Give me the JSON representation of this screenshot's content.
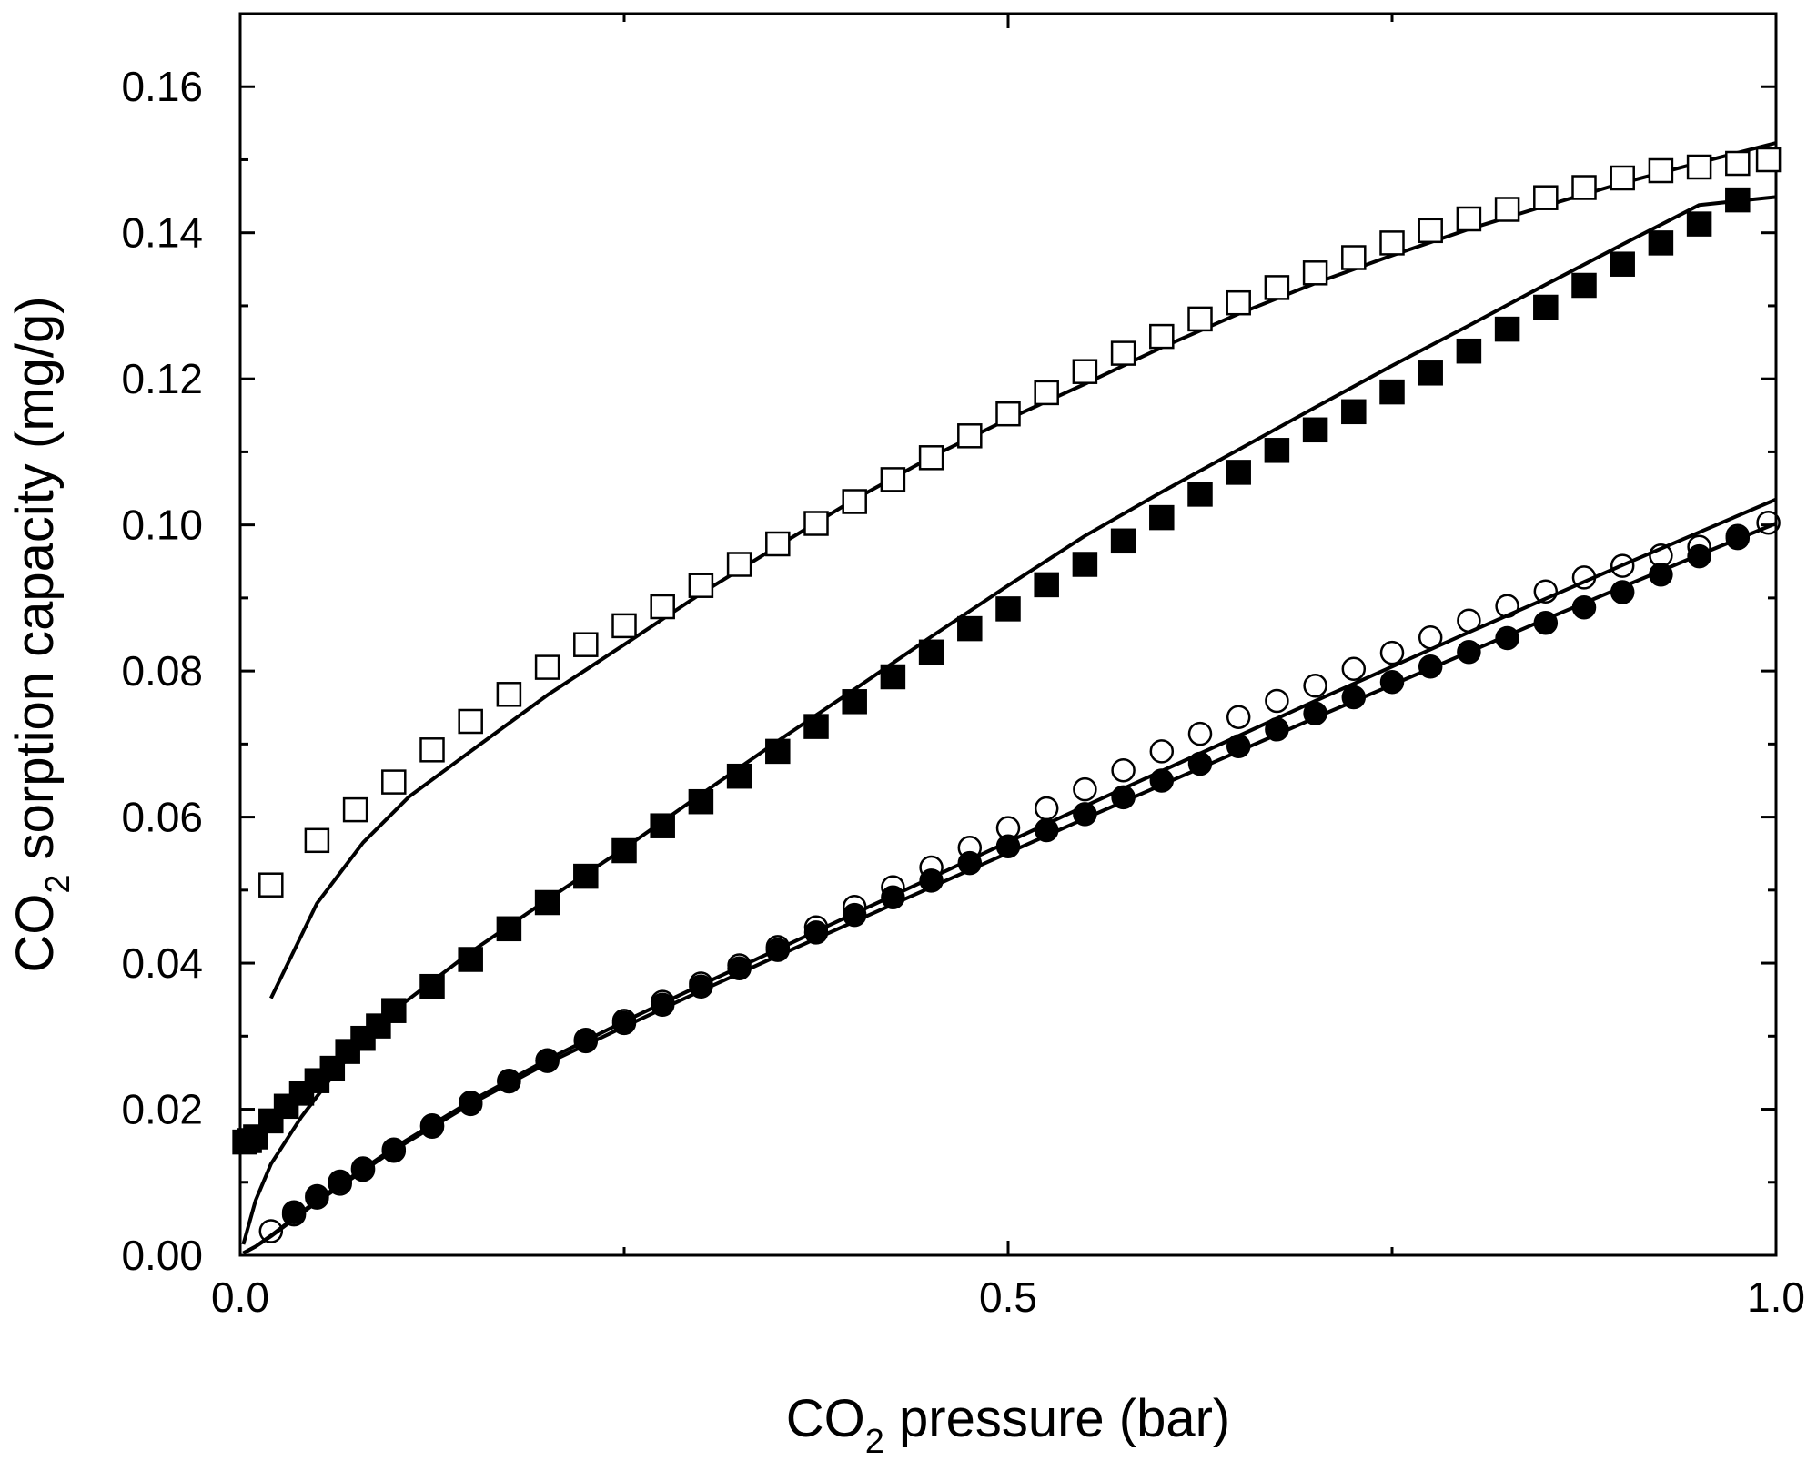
{
  "chart_data": {
    "type": "scatter",
    "xlabel": {
      "main": "CO",
      "sub": "2",
      "rest": " pressure (bar)"
    },
    "ylabel": {
      "main": "CO",
      "sub": "2",
      "rest": " sorption capacity (mg/g)"
    },
    "xlim": [
      0,
      1.0
    ],
    "ylim": [
      0,
      0.17
    ],
    "x_major_ticks": [
      0.0,
      0.5,
      1.0
    ],
    "x_tick_labels": [
      "0.0",
      "0.5",
      "1.0"
    ],
    "x_minor_ticks": [
      0.25,
      0.75
    ],
    "y_ticks": [
      0.0,
      0.02,
      0.04,
      0.06,
      0.08,
      0.1,
      0.12,
      0.14,
      0.16
    ],
    "y_tick_labels": [
      "0.00",
      "0.02",
      "0.04",
      "0.06",
      "0.08",
      "0.10",
      "0.12",
      "0.14",
      "0.16"
    ],
    "y_minor_ticks": [
      0.01,
      0.03,
      0.05,
      0.07,
      0.09,
      0.11,
      0.13,
      0.15
    ],
    "grid": false,
    "legend": "none",
    "series": [
      {
        "name": "open-squares",
        "marker": "square-open",
        "x": [
          0.02,
          0.05,
          0.075,
          0.1,
          0.125,
          0.15,
          0.175,
          0.2,
          0.225,
          0.25,
          0.275,
          0.3,
          0.325,
          0.35,
          0.375,
          0.4,
          0.425,
          0.45,
          0.475,
          0.5,
          0.525,
          0.55,
          0.575,
          0.6,
          0.625,
          0.65,
          0.675,
          0.7,
          0.725,
          0.75,
          0.775,
          0.8,
          0.825,
          0.85,
          0.875,
          0.9,
          0.925,
          0.95,
          0.975,
          0.995
        ],
        "y": [
          0.0507,
          0.0568,
          0.061,
          0.0648,
          0.0692,
          0.0731,
          0.0768,
          0.0805,
          0.0836,
          0.0862,
          0.0888,
          0.0917,
          0.0946,
          0.0974,
          0.1002,
          0.1032,
          0.1062,
          0.1092,
          0.1122,
          0.1152,
          0.1181,
          0.121,
          0.1235,
          0.1258,
          0.1282,
          0.1304,
          0.1325,
          0.1345,
          0.1366,
          0.1386,
          0.1403,
          0.1419,
          0.1432,
          0.1448,
          0.1462,
          0.1475,
          0.1485,
          0.149,
          0.1495,
          0.15
        ]
      },
      {
        "name": "filled-squares",
        "marker": "square-filled",
        "x": [
          0.003,
          0.006,
          0.01,
          0.02,
          0.03,
          0.04,
          0.05,
          0.06,
          0.07,
          0.08,
          0.09,
          0.1,
          0.125,
          0.15,
          0.175,
          0.2,
          0.225,
          0.25,
          0.275,
          0.3,
          0.325,
          0.35,
          0.375,
          0.4,
          0.425,
          0.45,
          0.475,
          0.5,
          0.525,
          0.55,
          0.575,
          0.6,
          0.625,
          0.65,
          0.675,
          0.7,
          0.725,
          0.75,
          0.775,
          0.8,
          0.825,
          0.85,
          0.875,
          0.9,
          0.925,
          0.95,
          0.975
        ],
        "y": [
          0.0155,
          0.0157,
          0.0162,
          0.0184,
          0.0204,
          0.0222,
          0.0239,
          0.0256,
          0.0279,
          0.0297,
          0.0314,
          0.0335,
          0.0368,
          0.0405,
          0.0447,
          0.0483,
          0.0519,
          0.0554,
          0.0588,
          0.0621,
          0.0656,
          0.069,
          0.0724,
          0.0758,
          0.0792,
          0.0826,
          0.0858,
          0.0885,
          0.0918,
          0.0946,
          0.0978,
          0.101,
          0.1042,
          0.1072,
          0.1102,
          0.113,
          0.1155,
          0.1182,
          0.1208,
          0.1238,
          0.1268,
          0.1298,
          0.1328,
          0.1357,
          0.1386,
          0.1412,
          0.1445
        ]
      },
      {
        "name": "open-circles",
        "marker": "circle-open",
        "x": [
          0.02,
          0.035,
          0.05,
          0.065,
          0.08,
          0.1,
          0.125,
          0.15,
          0.175,
          0.2,
          0.225,
          0.25,
          0.275,
          0.3,
          0.325,
          0.35,
          0.375,
          0.4,
          0.425,
          0.45,
          0.475,
          0.5,
          0.525,
          0.55,
          0.575,
          0.6,
          0.625,
          0.65,
          0.675,
          0.7,
          0.725,
          0.75,
          0.775,
          0.8,
          0.825,
          0.85,
          0.875,
          0.9,
          0.925,
          0.95,
          0.975,
          0.995
        ],
        "y": [
          0.0033,
          0.0056,
          0.0079,
          0.0098,
          0.0117,
          0.0143,
          0.0176,
          0.0207,
          0.0238,
          0.0267,
          0.0295,
          0.0321,
          0.0347,
          0.0372,
          0.0397,
          0.0422,
          0.0449,
          0.0477,
          0.0504,
          0.0531,
          0.0558,
          0.0585,
          0.0612,
          0.0638,
          0.0664,
          0.069,
          0.0714,
          0.0737,
          0.0759,
          0.078,
          0.0803,
          0.0825,
          0.0846,
          0.0869,
          0.0889,
          0.0909,
          0.0928,
          0.0944,
          0.0958,
          0.097,
          0.0985,
          0.1003
        ]
      },
      {
        "name": "filled-circles",
        "marker": "circle-filled",
        "x": [
          0.035,
          0.05,
          0.065,
          0.08,
          0.1,
          0.125,
          0.15,
          0.175,
          0.2,
          0.225,
          0.25,
          0.275,
          0.3,
          0.325,
          0.35,
          0.375,
          0.4,
          0.425,
          0.45,
          0.475,
          0.5,
          0.525,
          0.55,
          0.575,
          0.6,
          0.625,
          0.65,
          0.675,
          0.7,
          0.725,
          0.75,
          0.775,
          0.8,
          0.825,
          0.85,
          0.875,
          0.9,
          0.925,
          0.95,
          0.975
        ],
        "y": [
          0.0059,
          0.0081,
          0.0101,
          0.0119,
          0.0145,
          0.0178,
          0.0209,
          0.0239,
          0.0266,
          0.0293,
          0.0318,
          0.0343,
          0.0368,
          0.0393,
          0.0418,
          0.0442,
          0.0466,
          0.049,
          0.0513,
          0.0537,
          0.056,
          0.0582,
          0.0604,
          0.0627,
          0.065,
          0.0673,
          0.0697,
          0.072,
          0.0742,
          0.0764,
          0.0785,
          0.0806,
          0.0826,
          0.0845,
          0.0866,
          0.0887,
          0.0908,
          0.0932,
          0.0957,
          0.0982
        ]
      }
    ],
    "fit_lines": [
      {
        "name": "fit-open-squares",
        "x": [
          0.02,
          0.05,
          0.08,
          0.11,
          0.15,
          0.2,
          0.25,
          0.3,
          0.35,
          0.4,
          0.45,
          0.5,
          0.55,
          0.6,
          0.65,
          0.7,
          0.75,
          0.8,
          0.85,
          0.9,
          0.95,
          1.0
        ],
        "y": [
          0.0352,
          0.0482,
          0.0565,
          0.0628,
          0.069,
          0.0767,
          0.0836,
          0.0906,
          0.0971,
          0.1035,
          0.1093,
          0.1145,
          0.1193,
          0.1243,
          0.1289,
          0.1331,
          0.1369,
          0.1405,
          0.1437,
          0.1468,
          0.1496,
          0.1523
        ]
      },
      {
        "name": "fit-filled-squares",
        "x": [
          0.002,
          0.01,
          0.02,
          0.04,
          0.06,
          0.08,
          0.1,
          0.15,
          0.2,
          0.25,
          0.3,
          0.35,
          0.4,
          0.45,
          0.5,
          0.55,
          0.6,
          0.65,
          0.7,
          0.75,
          0.8,
          0.85,
          0.9,
          0.95,
          1.0
        ],
        "y": [
          0.0015,
          0.0075,
          0.0125,
          0.019,
          0.0245,
          0.0295,
          0.0335,
          0.0415,
          0.0487,
          0.0557,
          0.0631,
          0.0704,
          0.0775,
          0.0847,
          0.0917,
          0.0985,
          0.1045,
          0.1103,
          0.1161,
          0.1218,
          0.1273,
          0.1329,
          0.1384,
          0.1438,
          0.1449
        ]
      },
      {
        "name": "fit-open-circles",
        "x": [
          0.002,
          0.01,
          0.02,
          0.05,
          0.1,
          0.15,
          0.2,
          0.25,
          0.3,
          0.35,
          0.4,
          0.45,
          0.5,
          0.55,
          0.6,
          0.65,
          0.7,
          0.75,
          0.8,
          0.85,
          0.9,
          0.95,
          1.0
        ],
        "y": [
          0.0003,
          0.0012,
          0.0027,
          0.0075,
          0.0147,
          0.0211,
          0.0268,
          0.032,
          0.037,
          0.0419,
          0.0468,
          0.0517,
          0.0566,
          0.0615,
          0.0663,
          0.0711,
          0.0759,
          0.0806,
          0.0853,
          0.0899,
          0.0945,
          0.099,
          0.1035
        ]
      },
      {
        "name": "fit-filled-circles",
        "x": [
          0.002,
          0.01,
          0.02,
          0.05,
          0.1,
          0.15,
          0.2,
          0.25,
          0.3,
          0.35,
          0.4,
          0.45,
          0.5,
          0.55,
          0.6,
          0.65,
          0.7,
          0.75,
          0.8,
          0.85,
          0.9,
          0.95,
          1.0
        ],
        "y": [
          0.0003,
          0.0012,
          0.0026,
          0.0073,
          0.0144,
          0.0207,
          0.0263,
          0.0313,
          0.0362,
          0.041,
          0.0457,
          0.0504,
          0.0551,
          0.0598,
          0.0644,
          0.069,
          0.0736,
          0.0781,
          0.0826,
          0.0871,
          0.0915,
          0.0959,
          0.1002
        ]
      }
    ]
  }
}
